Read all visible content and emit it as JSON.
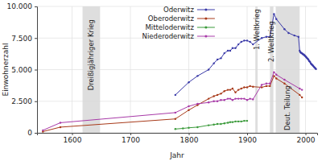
{
  "chart_data": {
    "type": "line",
    "x_label": "Jahr",
    "y_label": "Einwohnerzahl",
    "xlim": [
      1540,
      2020
    ],
    "xticks": [
      1600,
      1700,
      1800,
      1900,
      2000
    ],
    "ylim": [
      0,
      10000
    ],
    "yticks": [
      0,
      {
        "value": 2500,
        "label": "2.500"
      },
      {
        "value": 5000,
        "label": "5.000"
      },
      {
        "value": 7500,
        "label": "7.500"
      },
      {
        "value": 10000,
        "label": "10.000"
      }
    ],
    "grid": true,
    "legend": "top",
    "marker": "circle",
    "annotations": [
      {
        "label": "Dreißigjähriger Krieg",
        "start": 1618,
        "end": 1648
      },
      {
        "label": "1. Weltkrieg",
        "start": 1914,
        "end": 1918
      },
      {
        "label": "2. Weltkrieg",
        "start": 1939,
        "end": 1945
      },
      {
        "label": "Deut. Teilung",
        "start": 1949,
        "end": 1990
      }
    ],
    "series": [
      {
        "name": "Oderwitz",
        "color": "#3a3aa8",
        "x": [
          1777,
          1800,
          1815,
          1834,
          1843,
          1849,
          1855,
          1861,
          1867,
          1871,
          1875,
          1880,
          1885,
          1890,
          1895,
          1900,
          1905,
          1910,
          1925,
          1933,
          1939,
          1946,
          1950,
          1964,
          1971,
          1981,
          1988,
          1990,
          1991,
          1992,
          1993,
          1994,
          1995,
          1996,
          1997,
          1998,
          1999,
          2000,
          2001,
          2002,
          2003,
          2004,
          2005,
          2006,
          2007,
          2008,
          2009,
          2010,
          2011,
          2012,
          2013,
          2014,
          2015,
          2016,
          2017,
          2018
        ],
        "values": [
          3000,
          4000,
          4500,
          5000,
          5500,
          5800,
          5900,
          6300,
          6500,
          6500,
          6700,
          6700,
          7000,
          7200,
          7300,
          7300,
          7200,
          7000,
          7500,
          7600,
          7600,
          9400,
          9000,
          8200,
          7900,
          7700,
          7600,
          6500,
          6400,
          6350,
          6300,
          6300,
          6250,
          6200,
          6200,
          6150,
          6100,
          6050,
          6000,
          5950,
          5900,
          5850,
          5800,
          5700,
          5650,
          5600,
          5500,
          5450,
          5400,
          5350,
          5300,
          5250,
          5200,
          5150,
          5100,
          5050
        ]
      },
      {
        "name": "Oberoderwitz",
        "color": "#a83a1a",
        "x": [
          1550,
          1580,
          1777,
          1800,
          1815,
          1834,
          1843,
          1849,
          1855,
          1861,
          1867,
          1871,
          1875,
          1880,
          1885,
          1890,
          1895,
          1900,
          1905,
          1910,
          1925,
          1933,
          1939,
          1946,
          1950,
          1964,
          1990,
          1994
        ],
        "values": [
          100,
          450,
          1100,
          1800,
          2200,
          2700,
          2900,
          3000,
          3100,
          3300,
          3400,
          3400,
          3500,
          3200,
          3400,
          3500,
          3600,
          3600,
          3700,
          3650,
          3600,
          3700,
          3700,
          4500,
          4300,
          3900,
          3000,
          2800
        ]
      },
      {
        "name": "Mitteloderwitz",
        "color": "#3a9a3a",
        "x": [
          1777,
          1790,
          1800,
          1815,
          1834,
          1843,
          1849,
          1855,
          1861,
          1867,
          1871,
          1875,
          1880,
          1885,
          1890,
          1895,
          1900
        ],
        "values": [
          300,
          350,
          400,
          450,
          600,
          650,
          700,
          700,
          750,
          800,
          850,
          850,
          900,
          900,
          900,
          950,
          950
        ]
      },
      {
        "name": "Niederoderwitz",
        "color": "#a83aa8",
        "x": [
          1550,
          1580,
          1777,
          1800,
          1815,
          1834,
          1843,
          1849,
          1855,
          1861,
          1867,
          1871,
          1875,
          1880,
          1885,
          1890,
          1895,
          1900,
          1905,
          1910,
          1925,
          1933,
          1939,
          1946,
          1950,
          1964,
          1990,
          1994
        ],
        "values": [
          200,
          800,
          1600,
          2100,
          2300,
          2400,
          2500,
          2500,
          2600,
          2600,
          2700,
          2700,
          2600,
          2700,
          2700,
          2700,
          2700,
          2600,
          2700,
          2650,
          3800,
          3900,
          3900,
          4800,
          4600,
          4200,
          3500,
          3400
        ]
      }
    ]
  }
}
